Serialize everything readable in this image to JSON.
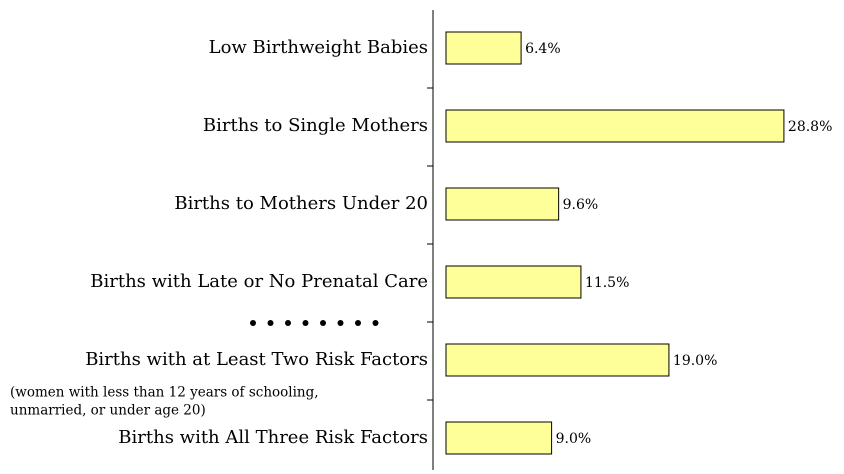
{
  "chart_data": {
    "type": "bar",
    "orientation": "horizontal",
    "categories": [
      "Low Birthweight Babies",
      "Births to Single Mothers",
      "Births to Mothers Under 20",
      "Births with Late or No Prenatal Care",
      "Births with at Least Two Risk Factors",
      "Births with All Three Risk Factors"
    ],
    "values": [
      6.4,
      28.8,
      9.6,
      11.5,
      19.0,
      9.0
    ],
    "value_labels": [
      "6.4%",
      "28.8%",
      "9.6%",
      "11.5%",
      "19.0%",
      "9.0%"
    ],
    "color": "#ffff99",
    "xlim": [
      0,
      30
    ],
    "annotations": [
      "(women with less than 12 years of schooling,",
      "unmarried, or under age 20)"
    ]
  }
}
